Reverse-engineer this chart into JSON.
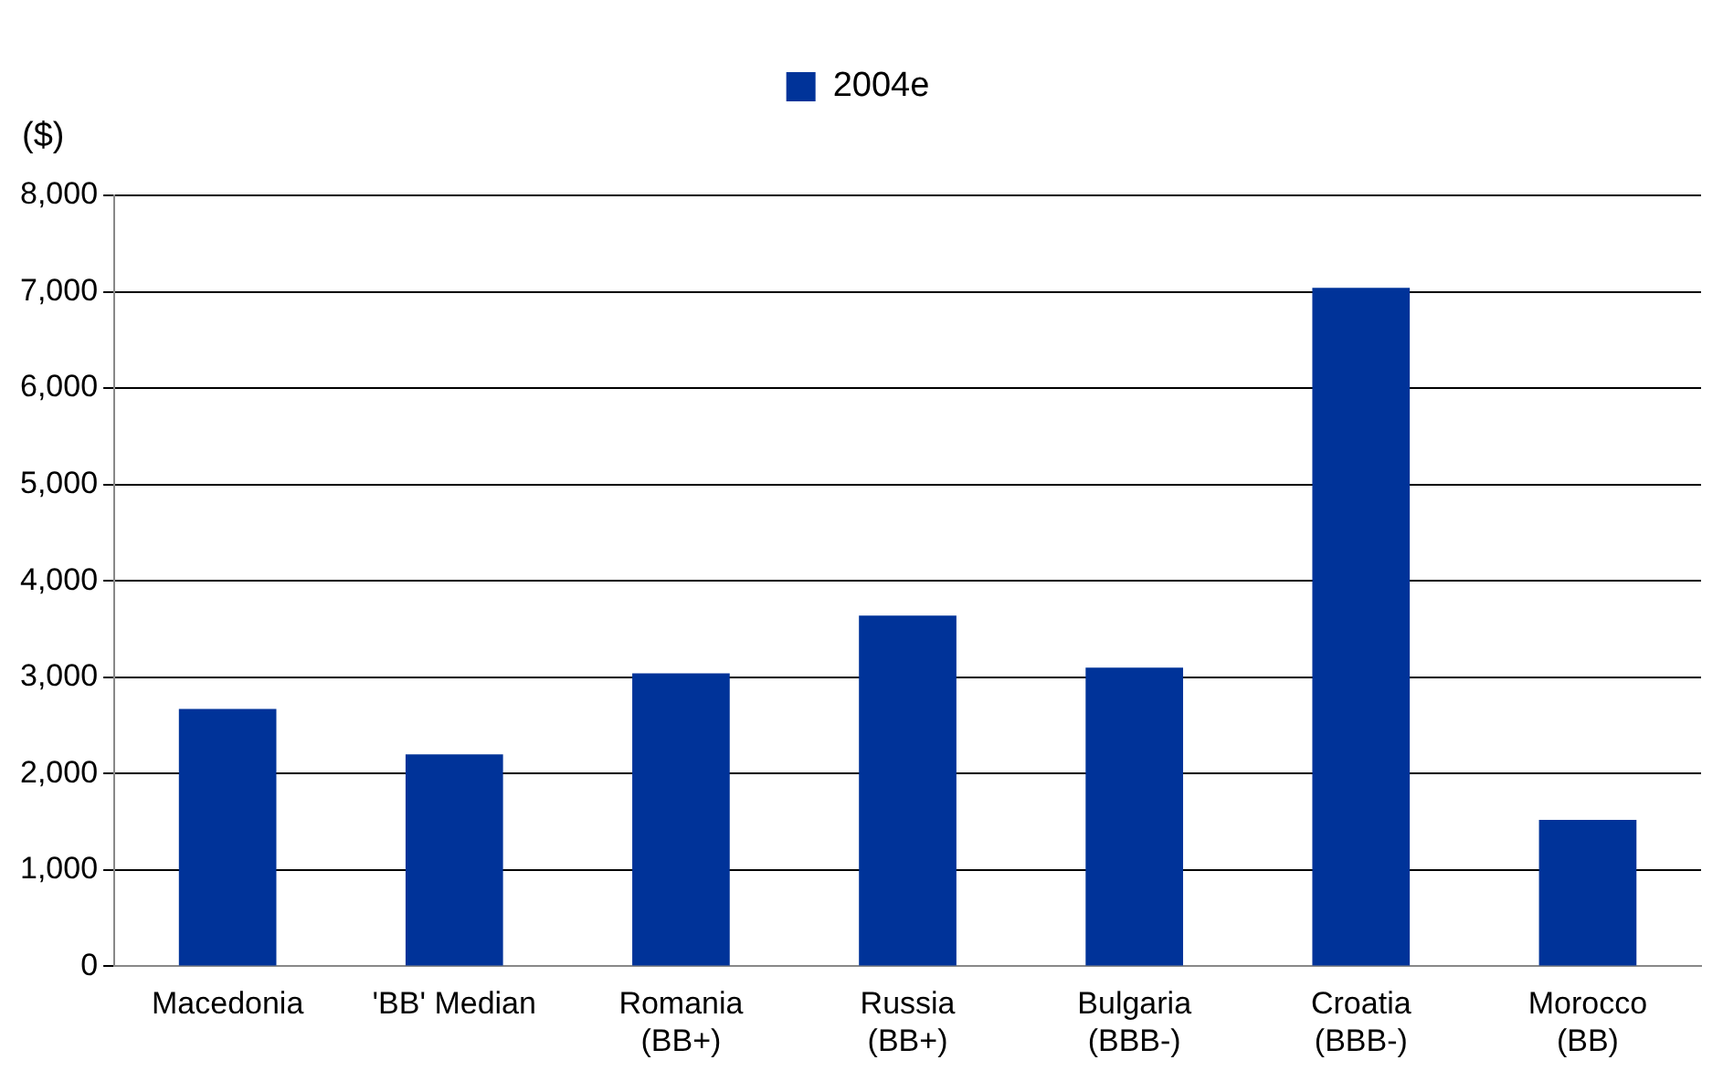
{
  "chart_data": {
    "type": "bar",
    "ylabel": "($)",
    "categories": [
      "Macedonia",
      "'BB' Median",
      "Romania\n(BB+)",
      "Russia\n(BB+)",
      "Bulgaria\n(BBB-)",
      "Croatia\n(BBB-)",
      "Morocco\n(BB)"
    ],
    "series": [
      {
        "name": "2004e",
        "color": "#003399",
        "values": [
          2670,
          2200,
          3040,
          3640,
          3100,
          7040,
          1520
        ]
      }
    ],
    "ylim": [
      0,
      8000
    ],
    "yticks": [
      {
        "value": 0,
        "label": "0"
      },
      {
        "value": 1000,
        "label": "1,000"
      },
      {
        "value": 2000,
        "label": "2,000"
      },
      {
        "value": 3000,
        "label": "3,000"
      },
      {
        "value": 4000,
        "label": "4,000"
      },
      {
        "value": 5000,
        "label": "5,000"
      },
      {
        "value": 6000,
        "label": "6,000"
      },
      {
        "value": 7000,
        "label": "7,000"
      },
      {
        "value": 8000,
        "label": "8,000"
      }
    ],
    "grid": "y",
    "legend": "top"
  }
}
